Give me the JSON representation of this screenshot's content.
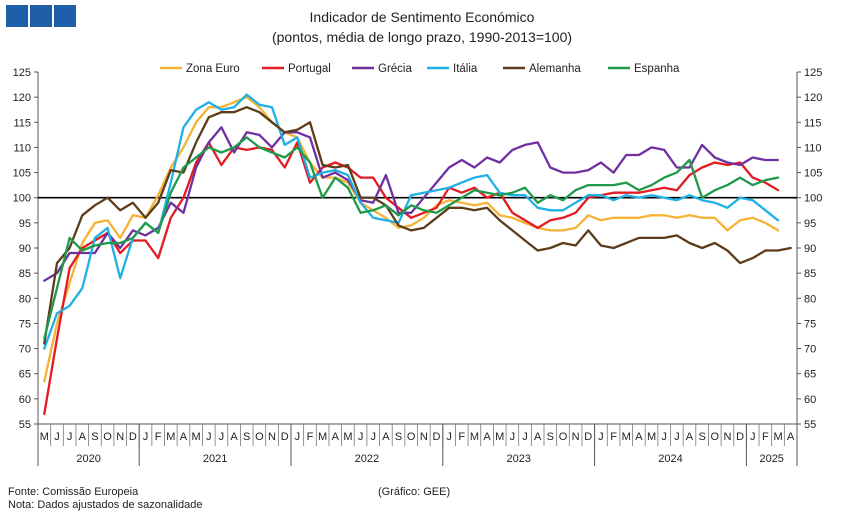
{
  "chart_data": {
    "type": "line",
    "title": "Indicador de Sentimento Económico",
    "subtitle": "(pontos, média de longo prazo, 1990-2013=100)",
    "ylim": [
      55,
      125
    ],
    "yticks": [
      55,
      60,
      65,
      70,
      75,
      80,
      85,
      90,
      95,
      100,
      105,
      110,
      115,
      120,
      125
    ],
    "reference_line": 100,
    "legend_position": "top",
    "months": [
      "M",
      "J",
      "J",
      "A",
      "S",
      "O",
      "N",
      "D",
      "J",
      "F",
      "M",
      "A",
      "M",
      "J",
      "J",
      "A",
      "S",
      "O",
      "N",
      "D",
      "J",
      "F",
      "M",
      "A",
      "M",
      "J",
      "J",
      "A",
      "S",
      "O",
      "N",
      "D",
      "J",
      "F",
      "M",
      "A",
      "M",
      "J",
      "J",
      "A",
      "S",
      "O",
      "N",
      "D",
      "J",
      "F",
      "M",
      "A",
      "M",
      "J",
      "J",
      "A",
      "S",
      "O",
      "N",
      "D",
      "J",
      "F",
      "M",
      "A"
    ],
    "years": [
      {
        "label": "2020",
        "start": 0,
        "count": 8
      },
      {
        "label": "2021",
        "start": 8,
        "count": 12
      },
      {
        "label": "2022",
        "start": 20,
        "count": 12
      },
      {
        "label": "2023",
        "start": 32,
        "count": 12
      },
      {
        "label": "2024",
        "start": 44,
        "count": 12
      },
      {
        "label": "2025",
        "start": 56,
        "count": 4
      }
    ],
    "series": [
      {
        "name": "Zona Euro",
        "color": "#f5b335",
        "values": [
          63.5,
          75,
          83,
          91,
          95,
          95.5,
          92,
          96.5,
          96,
          100.5,
          106,
          110,
          115,
          118,
          118,
          119,
          120,
          118,
          115,
          113,
          112,
          107,
          104,
          104,
          103,
          99,
          97.5,
          96,
          94,
          94.5,
          96,
          98.5,
          99.5,
          99,
          98.5,
          99,
          96.5,
          96,
          95,
          94,
          93.5,
          93.5,
          94,
          96.5,
          95.5,
          96,
          96,
          96,
          96.5,
          96.5,
          96,
          96.5,
          96,
          96,
          93.5,
          95.5,
          96,
          95,
          93.5,
          null
        ]
      },
      {
        "name": "Portugal",
        "color": "#e31b23",
        "values": [
          57,
          72,
          86,
          90,
          91.5,
          93,
          89,
          91.5,
          91.5,
          88,
          96,
          100,
          107,
          111,
          106.5,
          110,
          109.5,
          110,
          109.5,
          106,
          111,
          103,
          106,
          107,
          106,
          104,
          104,
          100,
          98,
          96,
          97,
          98,
          102,
          101,
          102,
          100,
          101,
          97,
          95.5,
          94,
          95.5,
          96,
          97,
          100,
          100.5,
          101,
          101,
          101,
          101.5,
          102,
          101.5,
          104.5,
          106,
          107,
          106.5,
          107,
          104,
          103,
          101.5,
          null
        ]
      },
      {
        "name": "Grécia",
        "color": "#7030a0",
        "values": [
          83.5,
          85,
          89,
          89,
          89,
          93,
          90,
          93.5,
          92.5,
          94,
          99,
          97,
          106,
          111,
          114,
          109,
          113,
          112.5,
          110,
          113,
          113,
          112,
          104,
          105,
          103.5,
          99.5,
          99,
          104.5,
          97,
          97,
          100,
          103,
          106,
          107.5,
          106,
          108,
          107,
          109.5,
          110.5,
          111,
          106,
          105,
          105,
          105.5,
          107,
          105,
          108.5,
          108.5,
          110,
          109.5,
          106,
          106,
          110.5,
          108,
          107,
          106.5,
          108,
          107.5,
          107.5,
          null
        ]
      },
      {
        "name": "Itália",
        "color": "#1eb0e6",
        "values": [
          70,
          77,
          78.5,
          82,
          92,
          94,
          84,
          92,
          95,
          93,
          103,
          114,
          117.5,
          119,
          117.5,
          118,
          120.5,
          118.5,
          118,
          110.5,
          112,
          104,
          105,
          105.5,
          104.5,
          99,
          96,
          95.5,
          95,
          100.5,
          101,
          101.5,
          102,
          103,
          104,
          104.5,
          101,
          100.5,
          100.5,
          98,
          97.5,
          97.5,
          99,
          100.5,
          100.5,
          99.5,
          100.5,
          100,
          100.5,
          100,
          99.5,
          100.5,
          99.5,
          99,
          98,
          100,
          99.5,
          97.5,
          95.5,
          null
        ]
      },
      {
        "name": "Alemanha",
        "color": "#5c3d1a",
        "values": [
          71,
          87,
          90,
          96.5,
          98.5,
          100,
          97.5,
          99,
          96,
          99,
          105.5,
          105,
          111,
          116,
          117,
          117,
          118,
          117,
          115,
          113,
          113.5,
          115,
          106.5,
          106,
          106.5,
          100,
          100,
          98.5,
          94.5,
          93.5,
          94,
          96,
          98,
          98,
          97.5,
          98,
          95.5,
          93.5,
          91.5,
          89.5,
          90,
          91,
          90.5,
          93.5,
          90.5,
          90,
          91,
          92,
          92,
          92,
          92.5,
          91,
          90,
          91,
          89.5,
          87,
          88,
          89.5,
          89.5,
          90
        ]
      },
      {
        "name": "Espanha",
        "color": "#1e9a4a",
        "values": [
          72,
          82,
          92,
          89.5,
          90.5,
          91,
          91,
          92,
          95,
          93,
          101,
          106,
          108,
          110,
          109,
          110,
          112,
          110,
          109,
          108,
          110,
          107,
          100,
          104,
          102,
          97,
          97.5,
          98.5,
          96.5,
          98.5,
          97.5,
          97,
          98.5,
          100,
          101.5,
          101,
          100.5,
          101,
          102,
          99,
          100.5,
          99.5,
          101.5,
          102.5,
          102.5,
          102.5,
          103,
          101.5,
          102.5,
          104,
          105,
          107.5,
          100,
          101.5,
          102.5,
          104,
          102.5,
          103.5,
          104,
          null
        ]
      }
    ],
    "xlabel": "",
    "ylabel": ""
  },
  "footer": {
    "source": "Fonte: Comissão Europeia",
    "note": "Nota: Dados ajustados de sazonalidade",
    "credit": "(Gráfico: GEE)"
  },
  "logo_color": "#1f5ea8"
}
